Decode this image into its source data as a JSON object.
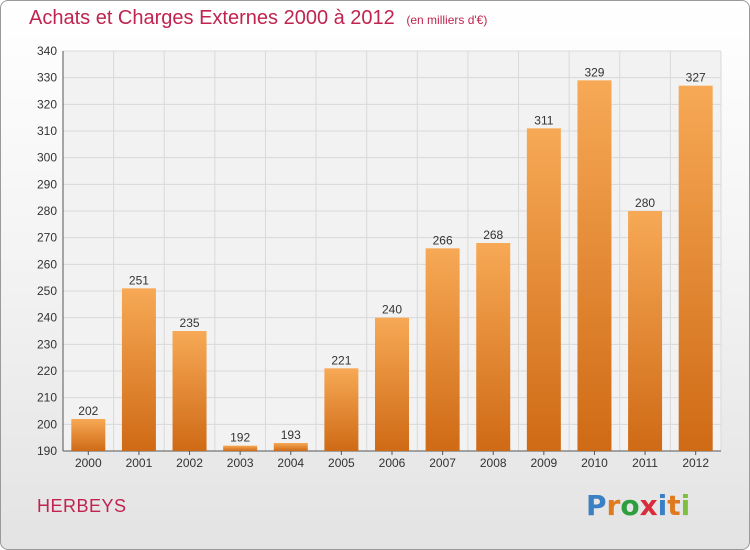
{
  "header": {
    "title": "Achats et Charges Externes 2000 à 2012",
    "unit": "(en milliers d'€)"
  },
  "footer": {
    "town": "HERBEYS",
    "logo_letters": [
      "P",
      "r",
      "o",
      "x",
      "i",
      "t",
      "i"
    ],
    "logo_colors": [
      "#3b7fc4",
      "#e07a1f",
      "#2e9e3e",
      "#d92d3b",
      "#3b7fc4",
      "#e07a1f",
      "#7fbf3f"
    ]
  },
  "colors": {
    "bar_top": "#f7a955",
    "bar_bottom": "#cf6a16",
    "title": "#c0234f",
    "grid": "#d9d9d9"
  },
  "chart_data": {
    "type": "bar",
    "title": "Achats et Charges Externes 2000 à 2012",
    "categories": [
      "2000",
      "2001",
      "2002",
      "2003",
      "2004",
      "2005",
      "2006",
      "2007",
      "2008",
      "2009",
      "2010",
      "2011",
      "2012"
    ],
    "values": [
      202,
      251,
      235,
      192,
      193,
      221,
      240,
      266,
      268,
      311,
      329,
      280,
      327
    ],
    "ylim": [
      190,
      340
    ],
    "yticks": [
      190,
      200,
      210,
      220,
      230,
      240,
      250,
      260,
      270,
      280,
      290,
      300,
      310,
      320,
      330,
      340
    ],
    "grid": true,
    "legend": "none"
  }
}
